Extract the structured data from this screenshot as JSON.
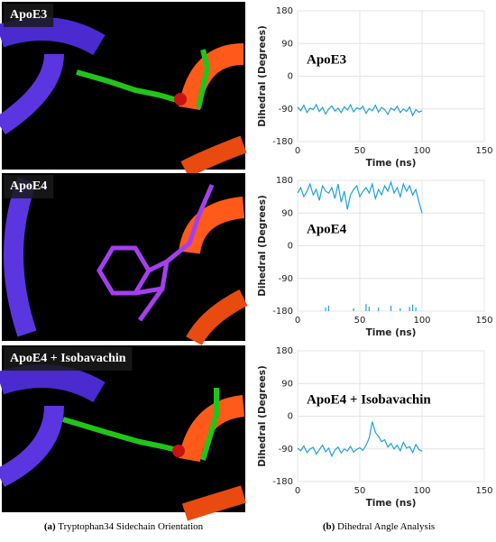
{
  "figure": {
    "panels": [
      {
        "label": "ApoE3"
      },
      {
        "label": "ApoE4"
      },
      {
        "label": "ApoE4 + Isobavachin"
      }
    ],
    "captions": [
      {
        "letter": "(a)",
        "text": "Tryptophan34 Sidechain Orientation"
      },
      {
        "letter": "(b)",
        "text": "Dihedral Angle Analysis"
      }
    ]
  },
  "chart_data": [
    {
      "type": "line",
      "title": "ApoE3",
      "xlabel": "Time (ns)",
      "ylabel": "Dihedral (Degrees)",
      "grid": true,
      "xlim": [
        0,
        150
      ],
      "ylim": [
        -180,
        180
      ],
      "xticks": [
        0,
        50,
        100,
        150
      ],
      "yticks": [
        -180,
        -90,
        0,
        90,
        180
      ],
      "x": [
        0,
        2.5,
        5,
        7.5,
        10,
        12.5,
        15,
        17.5,
        20,
        22.5,
        25,
        27.5,
        30,
        32.5,
        35,
        37.5,
        40,
        42.5,
        45,
        47.5,
        50,
        52.5,
        55,
        57.5,
        60,
        62.5,
        65,
        67.5,
        70,
        72.5,
        75,
        77.5,
        80,
        82.5,
        85,
        87.5,
        90,
        92.5,
        95,
        97.5,
        100
      ],
      "series": [
        {
          "color": "#1fa2d8",
          "values": [
            -85,
            -95,
            -80,
            -100,
            -88,
            -92,
            -78,
            -97,
            -86,
            -104,
            -90,
            -82,
            -96,
            -88,
            -100,
            -84,
            -93,
            -79,
            -98,
            -87,
            -91,
            -83,
            -102,
            -89,
            -95,
            -80,
            -99,
            -86,
            -92,
            -105,
            -88,
            -94,
            -83,
            -100,
            -90,
            -97,
            -85,
            -108,
            -92,
            -99,
            -95
          ]
        }
      ]
    },
    {
      "type": "line",
      "title": "ApoE4",
      "xlabel": "Time (ns)",
      "ylabel": "Dihedral (Degrees)",
      "grid": true,
      "xlim": [
        0,
        150
      ],
      "ylim": [
        -180,
        180
      ],
      "xticks": [
        0,
        50,
        100,
        150
      ],
      "yticks": [
        -180,
        -90,
        0,
        90,
        180
      ],
      "x": [
        0,
        2.5,
        5,
        7.5,
        10,
        12.5,
        15,
        17.5,
        20,
        22.5,
        25,
        27.5,
        30,
        32.5,
        35,
        37.5,
        40,
        42.5,
        45,
        47.5,
        50,
        52.5,
        55,
        57.5,
        60,
        62.5,
        65,
        67.5,
        70,
        72.5,
        75,
        77.5,
        80,
        82.5,
        85,
        87.5,
        90,
        92.5,
        95,
        97.5,
        100
      ],
      "series": [
        {
          "color": "#1fa2d8",
          "values": [
            145,
            160,
            135,
            150,
            170,
            140,
            155,
            125,
            165,
            150,
            145,
            160,
            130,
            170,
            120,
            150,
            100,
            140,
            155,
            165,
            135,
            150,
            160,
            145,
            170,
            130,
            155,
            140,
            165,
            150,
            175,
            145,
            160,
            135,
            170,
            150,
            165,
            140,
            155,
            120,
            90
          ]
        },
        {
          "color": "#1fa2d8",
          "style": "spikes",
          "values": [
            null,
            null,
            null,
            null,
            null,
            null,
            null,
            null,
            null,
            -170,
            -165,
            null,
            null,
            null,
            null,
            null,
            null,
            null,
            -172,
            null,
            null,
            null,
            -160,
            -168,
            null,
            null,
            -170,
            null,
            null,
            null,
            -165,
            null,
            null,
            -172,
            null,
            null,
            -168,
            -162,
            -170,
            null,
            null
          ]
        }
      ]
    },
    {
      "type": "line",
      "title": "ApoE4 + Isobavachin",
      "xlabel": "Time (ns)",
      "ylabel": "Dihedral (Degrees)",
      "grid": true,
      "xlim": [
        0,
        150
      ],
      "ylim": [
        -180,
        180
      ],
      "xticks": [
        0,
        50,
        100,
        150
      ],
      "yticks": [
        -180,
        -90,
        0,
        90,
        180
      ],
      "x": [
        0,
        2.5,
        5,
        7.5,
        10,
        12.5,
        15,
        17.5,
        20,
        22.5,
        25,
        27.5,
        30,
        32.5,
        35,
        37.5,
        40,
        42.5,
        45,
        47.5,
        50,
        52.5,
        55,
        57.5,
        60,
        62.5,
        65,
        67.5,
        70,
        72.5,
        75,
        77.5,
        80,
        82.5,
        85,
        87.5,
        90,
        92.5,
        95,
        97.5,
        100
      ],
      "series": [
        {
          "color": "#1fa2d8",
          "values": [
            -88,
            -95,
            -82,
            -100,
            -90,
            -86,
            -104,
            -92,
            -80,
            -98,
            -88,
            -110,
            -93,
            -85,
            -101,
            -90,
            -96,
            -83,
            -99,
            -91,
            -87,
            -94,
            -80,
            -60,
            -15,
            -45,
            -55,
            -70,
            -65,
            -85,
            -75,
            -90,
            -80,
            -95,
            -72,
            -88,
            -84,
            -100,
            -78,
            -92,
            -96
          ]
        }
      ]
    }
  ]
}
